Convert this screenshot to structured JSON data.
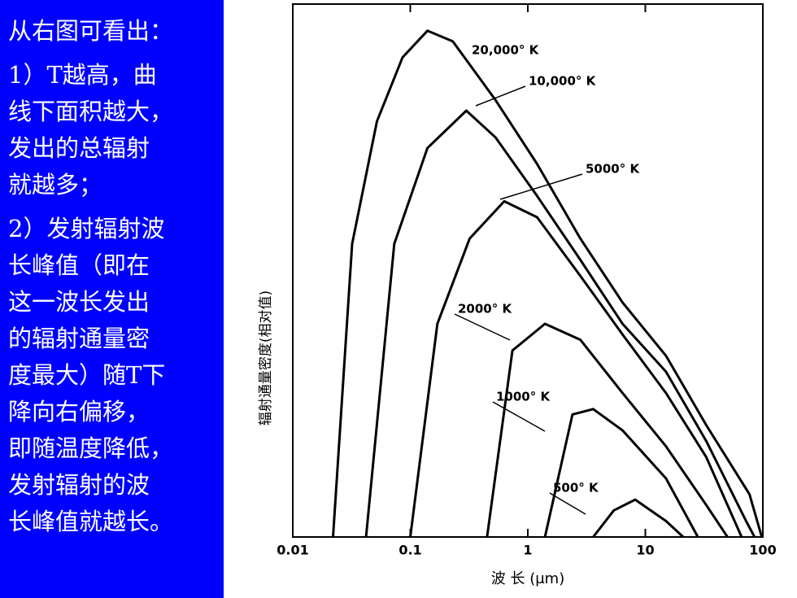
{
  "text_panel": {
    "heading": "从右图可看出：",
    "paragraphs": [
      [
        "1）T越高，曲",
        "线下面积越大，",
        "发出的总辐射",
        "就越多；"
      ],
      [
        "2）发射辐射波",
        "长峰值（即在",
        "这一波长发出",
        "的辐射通量密",
        "度最大）随T下",
        "降向右偏移，",
        "即随温度降低，",
        "发射辐射的波",
        "长峰值就越长。"
      ]
    ]
  },
  "chart_data": {
    "type": "line",
    "x_label": "波 长 (μm)",
    "y_label": "辐射通量密度(相对值)",
    "xlog": true,
    "xlim": [
      0.01,
      100
    ],
    "xticks": [
      0.01,
      0.1,
      1,
      10,
      100
    ],
    "ylim": [
      0,
      100
    ],
    "series": [
      {
        "name": "20,000° K",
        "color": "#000000",
        "x": [
          0.022,
          0.032,
          0.052,
          0.086,
          0.14,
          0.23,
          0.53,
          1.2,
          2.8,
          6.4,
          15,
          33,
          77,
          98
        ],
        "values": [
          0,
          55,
          78,
          90,
          95,
          93,
          82,
          70,
          56,
          44,
          34,
          21,
          8,
          0
        ]
      },
      {
        "name": "10,000° K",
        "color": "#000000",
        "x": [
          0.042,
          0.073,
          0.14,
          0.3,
          0.53,
          1.2,
          2.8,
          6.4,
          15,
          33,
          72,
          85
        ],
        "values": [
          0,
          55,
          73,
          80,
          75,
          64,
          52,
          40,
          31,
          18,
          3,
          0
        ]
      },
      {
        "name": "5000° K",
        "color": "#000000",
        "x": [
          0.1,
          0.17,
          0.32,
          0.63,
          1.2,
          2.8,
          6.4,
          15,
          33,
          66
        ],
        "values": [
          0,
          40,
          56,
          63,
          60,
          49,
          38,
          27,
          15,
          0
        ]
      },
      {
        "name": "2000° K",
        "color": "#000000",
        "x": [
          0.45,
          0.74,
          1.4,
          2.8,
          6.4,
          15,
          33,
          50
        ],
        "values": [
          0,
          35,
          40,
          37,
          27,
          17,
          6,
          0
        ]
      },
      {
        "name": "1000° K",
        "color": "#000000",
        "x": [
          1.4,
          2.4,
          3.6,
          6.4,
          15,
          28
        ],
        "values": [
          0,
          23,
          24,
          20,
          11,
          0
        ]
      },
      {
        "name": "500° K",
        "color": "#000000",
        "x": [
          3.6,
          5.4,
          8.2,
          15,
          21
        ],
        "values": [
          0,
          5,
          7,
          3,
          0
        ]
      }
    ]
  }
}
